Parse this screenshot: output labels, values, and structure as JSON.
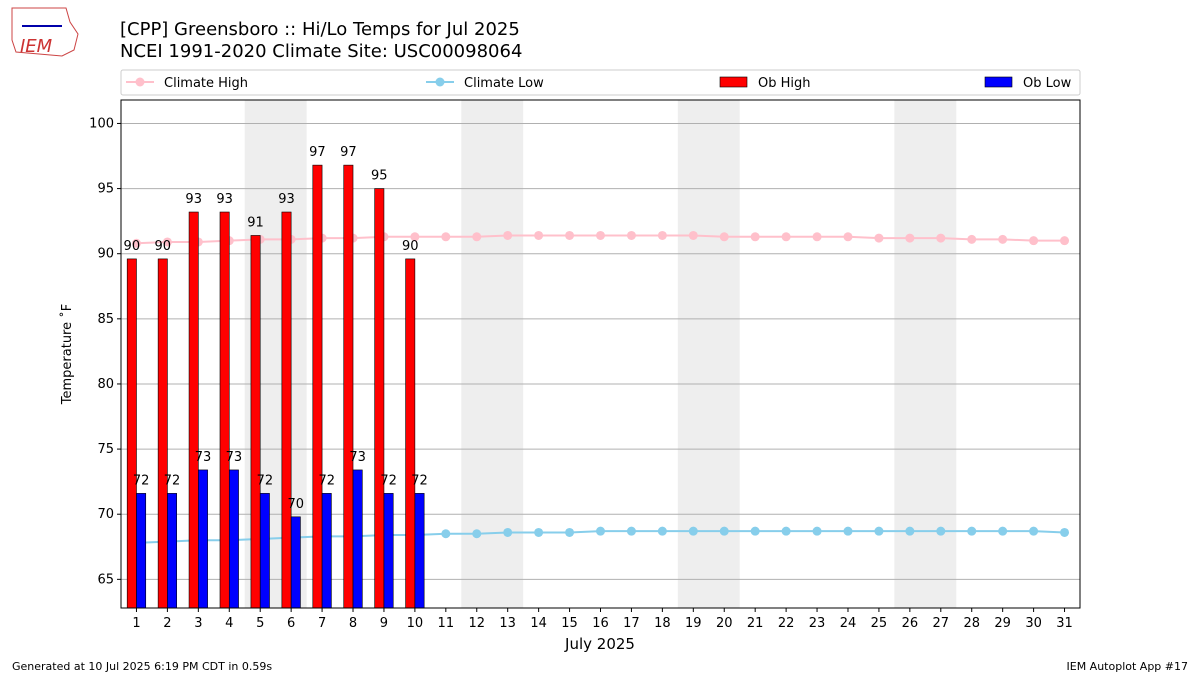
{
  "chart_data": {
    "type": "bar",
    "logo_text": "IEM",
    "title": "[CPP] Greensboro :: Hi/Lo Temps for Jul 2025",
    "subtitle": "NCEI 1991-2020 Climate Site: USC00098064",
    "xlabel": "July 2025",
    "ylabel": "Temperature ˚F",
    "footer_left": "Generated at 10 Jul 2025 6:19 PM CDT in 0.59s",
    "footer_right": "IEM Autoplot App #17",
    "x": [
      1,
      2,
      3,
      4,
      5,
      6,
      7,
      8,
      9,
      10,
      11,
      12,
      13,
      14,
      15,
      16,
      17,
      18,
      19,
      20,
      21,
      22,
      23,
      24,
      25,
      26,
      27,
      28,
      29,
      30,
      31
    ],
    "xlim": [
      0.5,
      31.5
    ],
    "xticks": [
      1,
      2,
      3,
      4,
      5,
      6,
      7,
      8,
      9,
      10,
      11,
      12,
      13,
      14,
      15,
      16,
      17,
      18,
      19,
      20,
      21,
      22,
      23,
      24,
      25,
      26,
      27,
      28,
      29,
      30,
      31
    ],
    "ylim": [
      62.8,
      101.8
    ],
    "yticks": [
      65,
      70,
      75,
      80,
      85,
      90,
      95,
      100
    ],
    "grid": true,
    "series": [
      {
        "name": "Climate High",
        "type": "line",
        "color": "#ffc0cb",
        "values": [
          90.8,
          90.9,
          90.9,
          91.0,
          91.1,
          91.1,
          91.2,
          91.2,
          91.3,
          91.3,
          91.3,
          91.3,
          91.4,
          91.4,
          91.4,
          91.4,
          91.4,
          91.4,
          91.4,
          91.3,
          91.3,
          91.3,
          91.3,
          91.3,
          91.2,
          91.2,
          91.2,
          91.1,
          91.1,
          91.0,
          91.0
        ]
      },
      {
        "name": "Climate Low",
        "type": "line",
        "color": "#87ceeb",
        "values": [
          67.8,
          67.9,
          68.0,
          68.0,
          68.1,
          68.2,
          68.3,
          68.3,
          68.4,
          68.4,
          68.5,
          68.5,
          68.6,
          68.6,
          68.6,
          68.7,
          68.7,
          68.7,
          68.7,
          68.7,
          68.7,
          68.7,
          68.7,
          68.7,
          68.7,
          68.7,
          68.7,
          68.7,
          68.7,
          68.7,
          68.6
        ]
      },
      {
        "name": "Ob High",
        "type": "bar",
        "color": "#ff0000",
        "values": [
          89.6,
          89.6,
          93.2,
          93.2,
          91.4,
          93.2,
          96.8,
          96.8,
          95.0,
          89.6,
          null,
          null,
          null,
          null,
          null,
          null,
          null,
          null,
          null,
          null,
          null,
          null,
          null,
          null,
          null,
          null,
          null,
          null,
          null,
          null,
          null
        ],
        "value_labels": [
          "90",
          "90",
          "93",
          "93",
          "91",
          "93",
          "97",
          "97",
          "95",
          "90",
          null,
          null,
          null,
          null,
          null,
          null,
          null,
          null,
          null,
          null,
          null,
          null,
          null,
          null,
          null,
          null,
          null,
          null,
          null,
          null,
          null
        ]
      },
      {
        "name": "Ob Low",
        "type": "bar",
        "color": "#0000ff",
        "values": [
          71.6,
          71.6,
          73.4,
          73.4,
          71.6,
          69.8,
          71.6,
          73.4,
          71.6,
          71.6,
          null,
          null,
          null,
          null,
          null,
          null,
          null,
          null,
          null,
          null,
          null,
          null,
          null,
          null,
          null,
          null,
          null,
          null,
          null,
          null,
          null
        ],
        "value_labels": [
          "72",
          "72",
          "73",
          "73",
          "72",
          "70",
          "72",
          "73",
          "72",
          "72",
          null,
          null,
          null,
          null,
          null,
          null,
          null,
          null,
          null,
          null,
          null,
          null,
          null,
          null,
          null,
          null,
          null,
          null,
          null,
          null,
          null
        ]
      }
    ]
  }
}
